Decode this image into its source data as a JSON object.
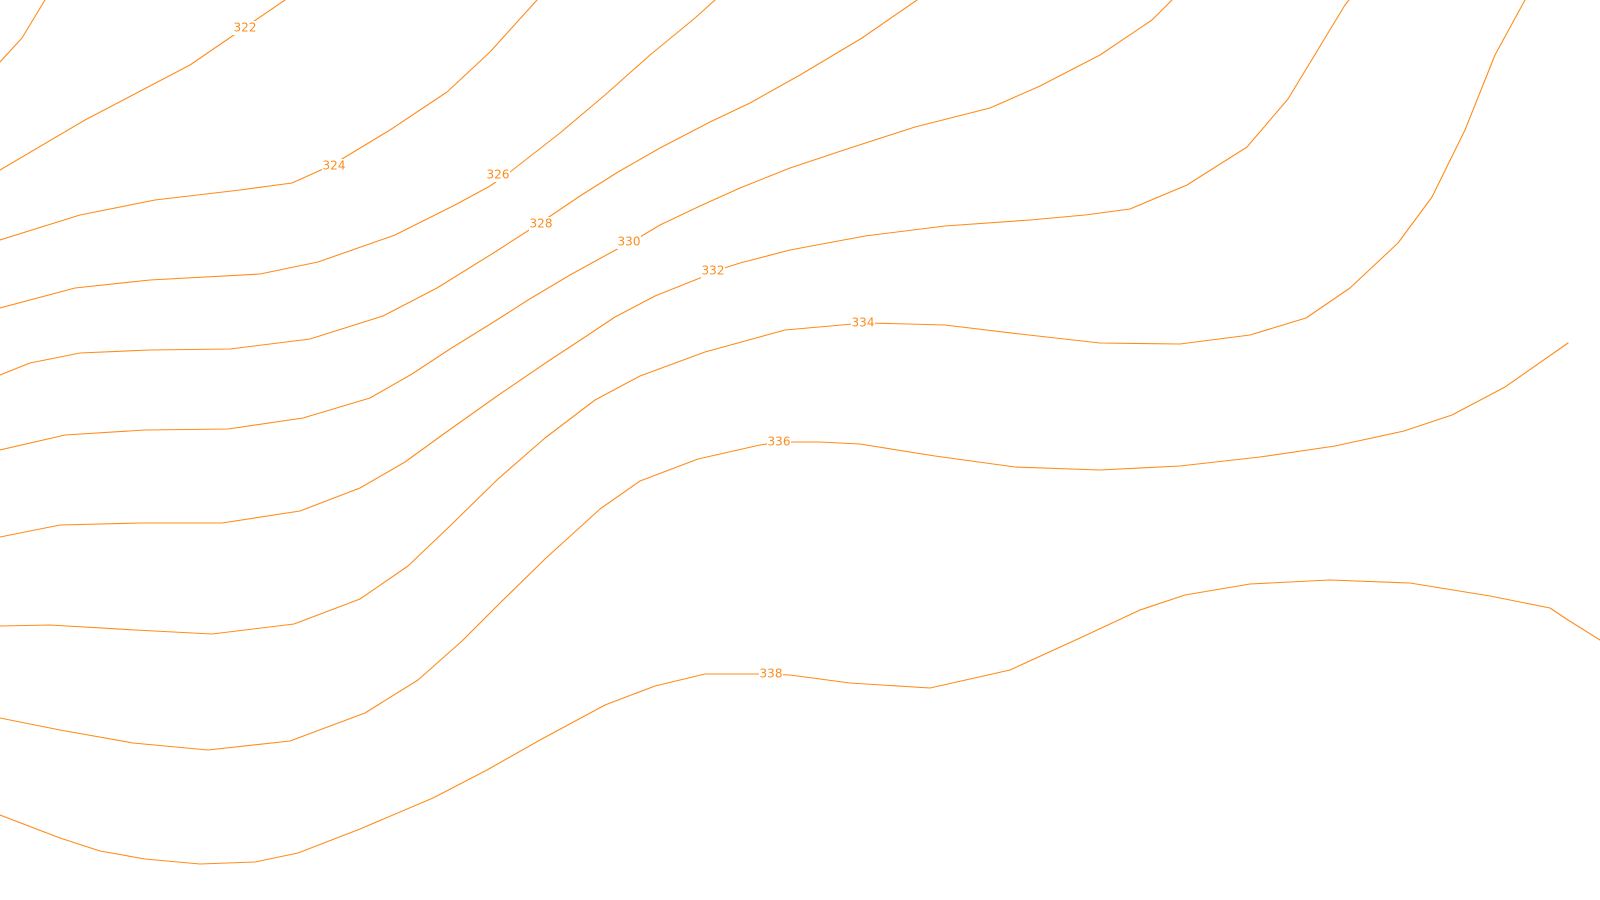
{
  "map": {
    "contour_color": "#ff8c1a",
    "label_color": "#ff8c1a",
    "background_color": "#ffffff",
    "contours": [
      {
        "elevation": 322,
        "label": "322"
      },
      {
        "elevation": 324,
        "label": "324"
      },
      {
        "elevation": 326,
        "label": "326"
      },
      {
        "elevation": 328,
        "label": "328"
      },
      {
        "elevation": 330,
        "label": "330"
      },
      {
        "elevation": 332,
        "label": "332"
      },
      {
        "elevation": 334,
        "label": "334"
      },
      {
        "elevation": 336,
        "label": "336"
      },
      {
        "elevation": 338,
        "label": "338"
      },
      {
        "elevation": null,
        "label": ""
      }
    ]
  }
}
